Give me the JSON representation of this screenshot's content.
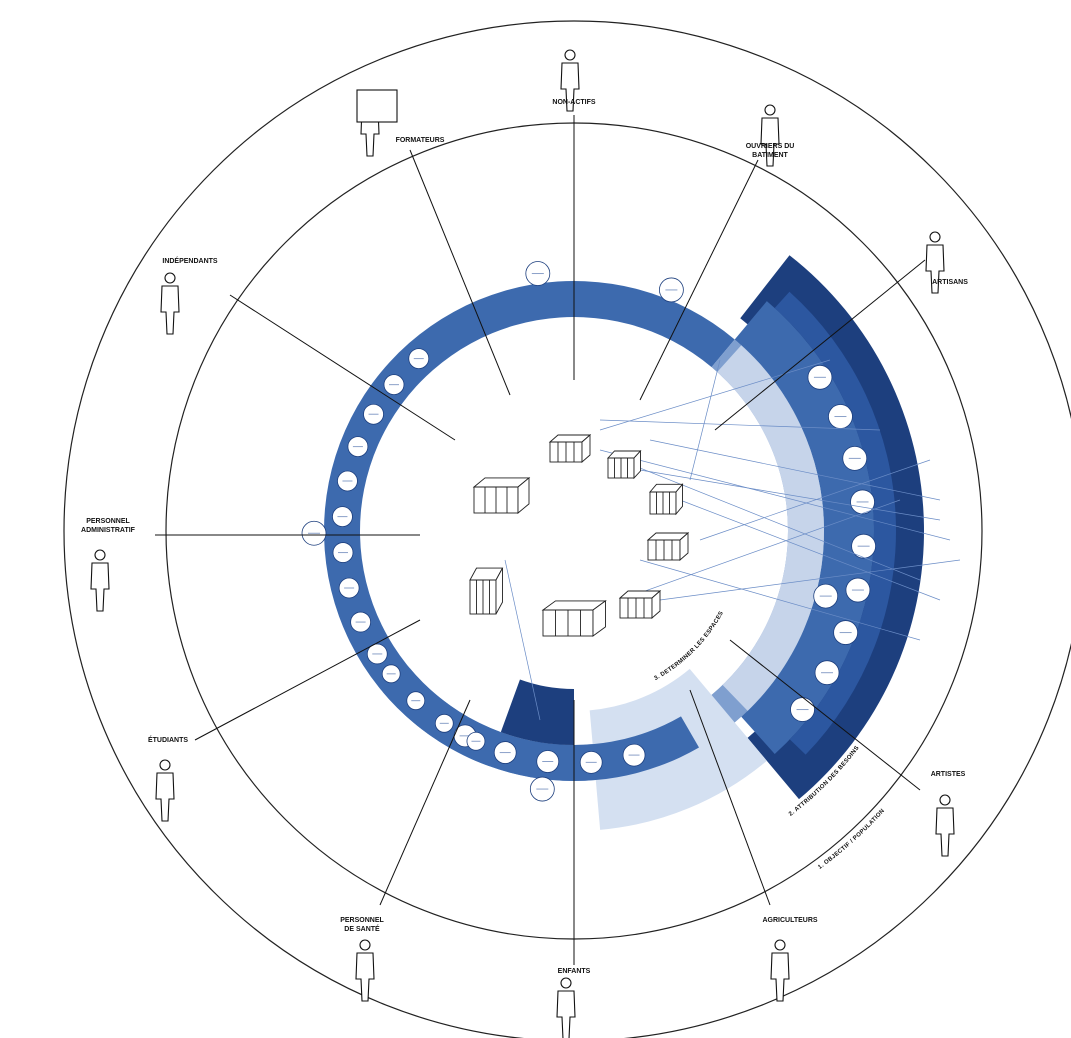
{
  "diagram": {
    "colors": {
      "navy": "#1d3f7e",
      "mid": "#3d6aae",
      "light": "#7f9fcf",
      "pale": "#c6d4ea",
      "outline": "#222222"
    },
    "categories": [
      {
        "id": "non-actifs",
        "label": "NON-ACTIFS",
        "icon": "pointing-person-icon"
      },
      {
        "id": "ouvriers",
        "label": "OUVRIERS DU BATIMENT",
        "icon": "construction-worker-icon"
      },
      {
        "id": "artisans",
        "label": "ARTISANS",
        "icon": "artisan-at-workbench-icon"
      },
      {
        "id": "artistes",
        "label": "ARTISTES",
        "icon": "artist-icon"
      },
      {
        "id": "agriculteurs",
        "label": "AGRICULTEURS",
        "icon": "farmer-with-cow-icon"
      },
      {
        "id": "enfants",
        "label": "ENFANTS",
        "icon": "parent-child-icon"
      },
      {
        "id": "sante",
        "label": "PERSONNEL DE SANTÉ",
        "icon": "doctor-patient-icon"
      },
      {
        "id": "etudiants",
        "label": "ÉTUDIANTS",
        "icon": "student-icon"
      },
      {
        "id": "administratif",
        "label": "PERSONNEL ADMINISTRATIF",
        "icon": "desk-worker-icon"
      },
      {
        "id": "independants",
        "label": "INDÉPENDANTS",
        "icon": "freelancer-icon"
      },
      {
        "id": "formateurs",
        "label": "FORMATEURS",
        "icon": "trainer-at-board-icon"
      }
    ],
    "ring_labels": {
      "ring1": "1. OBJECTIF / POPULATION",
      "ring2": "2. ATTRIBUTION DES BESOINS",
      "ring3": "3. DETERMINER LES ESPACES"
    }
  }
}
